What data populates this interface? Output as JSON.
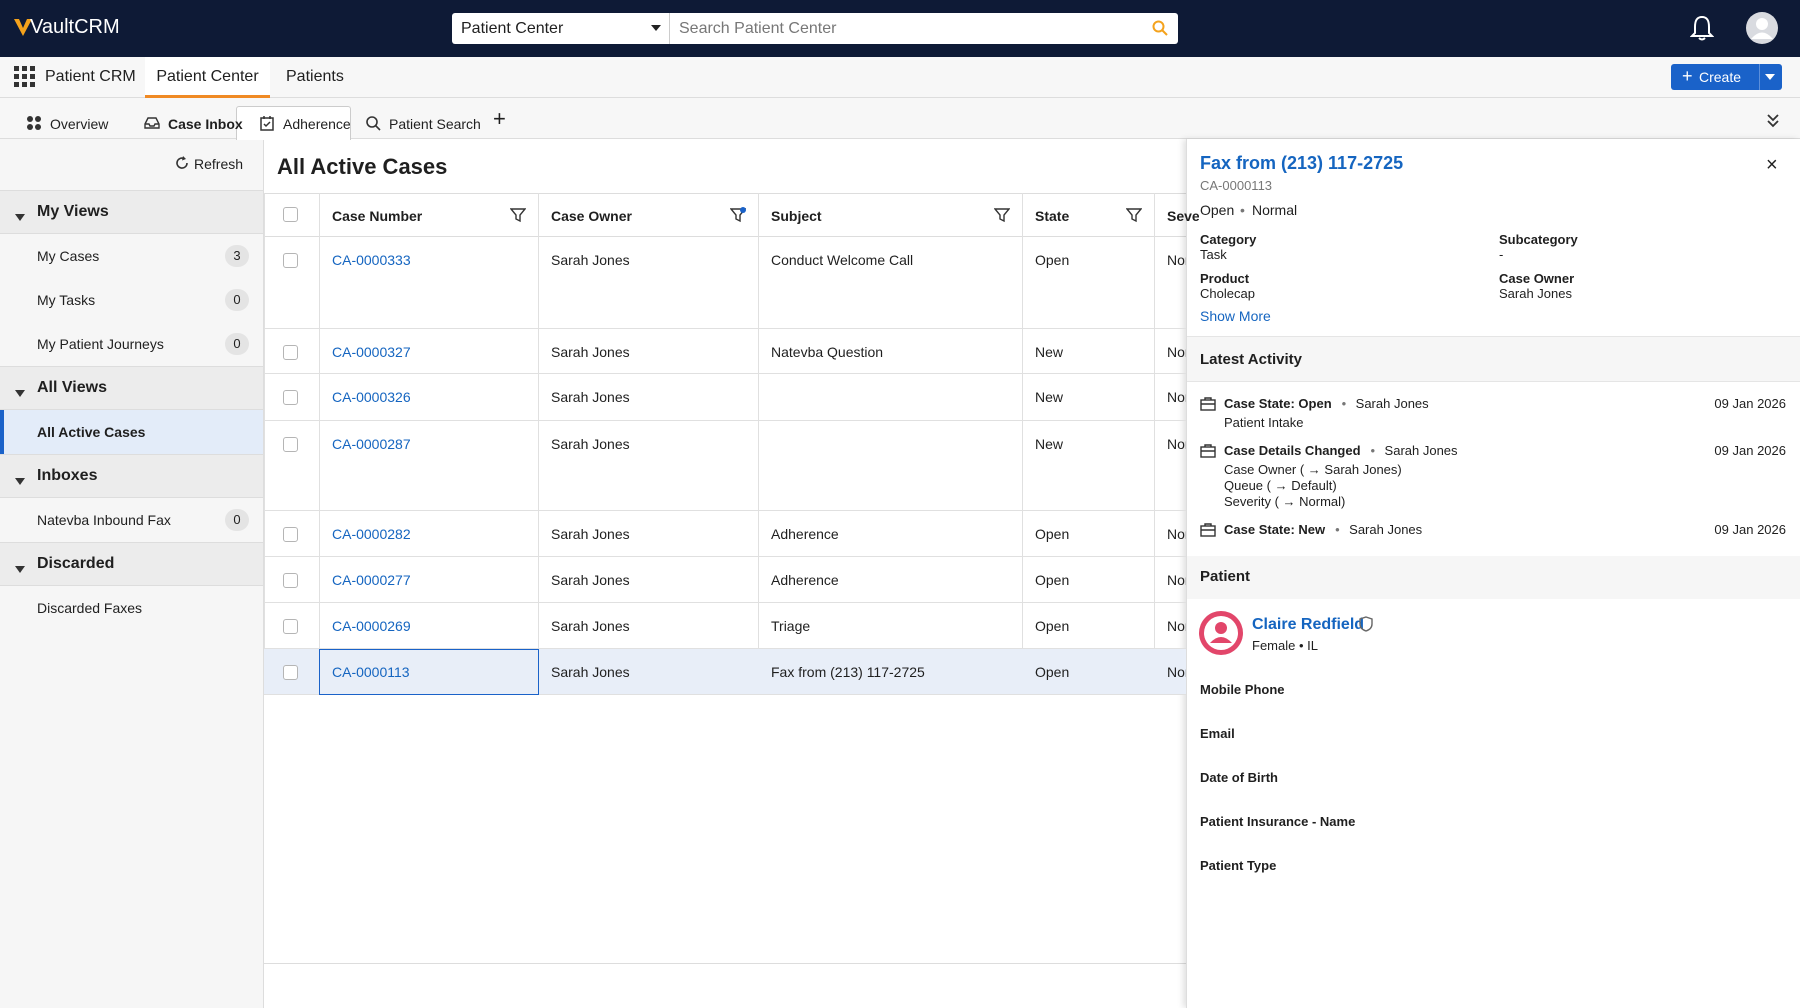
{
  "header": {
    "logo": "VaultCRM",
    "search_scope": "Patient Center",
    "search_placeholder": "Search Patient Center"
  },
  "nav": {
    "app": "Patient CRM",
    "tabs": [
      "Patient Center",
      "Patients"
    ],
    "create": "Create"
  },
  "subtabs": [
    "Overview",
    "Case Inbox",
    "Adherence",
    "Patient Search"
  ],
  "sidebar": {
    "refresh": "Refresh",
    "sections": [
      {
        "title": "My Views",
        "items": [
          {
            "label": "My Cases",
            "count": 3
          },
          {
            "label": "My Tasks",
            "count": 0
          },
          {
            "label": "My Patient Journeys",
            "count": 0
          }
        ]
      },
      {
        "title": "All Views",
        "items": [
          {
            "label": "All Active Cases"
          }
        ]
      },
      {
        "title": "Inboxes",
        "items": [
          {
            "label": "Natevba Inbound Fax",
            "count": 0
          }
        ]
      },
      {
        "title": "Discarded",
        "items": [
          {
            "label": "Discarded Faxes"
          }
        ]
      }
    ]
  },
  "table": {
    "title": "All Active Cases",
    "columns": [
      "Case Number",
      "Case Owner",
      "Subject",
      "State",
      "Severity"
    ],
    "rows": [
      [
        "CA-0000333",
        "Sarah Jones",
        "Conduct Welcome Call",
        "Open",
        "Normal"
      ],
      [
        "CA-0000327",
        "Sarah Jones",
        "Natevba Question",
        "New",
        "Normal"
      ],
      [
        "CA-0000326",
        "Sarah Jones",
        null,
        "New",
        "Normal"
      ],
      [
        "CA-0000287",
        "Sarah Jones",
        null,
        "New",
        "Normal"
      ],
      [
        "CA-0000282",
        "Sarah Jones",
        "Adherence",
        "Open",
        "Normal"
      ],
      [
        "CA-0000277",
        "Sarah Jones",
        "Adherence",
        "Open",
        "Normal"
      ],
      [
        "CA-0000269",
        "Sarah Jones",
        "Triage",
        "Open",
        "Normal"
      ],
      [
        "CA-0000113",
        "Sarah Jones",
        "Fax from (213) 117-2725",
        "Open",
        "Normal"
      ]
    ]
  },
  "detail": {
    "title": "Fax from (213) 117-2725",
    "id": "CA-0000113",
    "status": "Open",
    "severity": "Normal",
    "fields": [
      {
        "label": "Category",
        "value": "Task"
      },
      {
        "label": "Subcategory",
        "value": "-"
      },
      {
        "label": "Product",
        "value": "Cholecap"
      },
      {
        "label": "Case Owner",
        "value": "Sarah Jones"
      }
    ],
    "show_more": "Show More",
    "activity_title": "Latest Activity",
    "activities": [
      {
        "title": "Case State: Open",
        "user": "Sarah Jones",
        "date": "09 Jan 2026",
        "details": [
          "Patient Intake"
        ]
      },
      {
        "title": "Case Details Changed",
        "user": "Sarah Jones",
        "date": "09 Jan 2026",
        "details": [
          "Case Owner ( → Sarah Jones)",
          "Queue ( → Default)",
          "Severity ( → Normal)"
        ]
      },
      {
        "title": "Case State: New",
        "user": "Sarah Jones",
        "date": "09 Jan 2026",
        "details": []
      }
    ],
    "patient_title": "Patient",
    "patient": {
      "name": "Claire Redfield",
      "info": "Female • IL"
    },
    "patient_fields": [
      "Mobile Phone",
      "Email",
      "Date of Birth",
      "Patient Insurance - Name",
      "Patient Type"
    ]
  }
}
